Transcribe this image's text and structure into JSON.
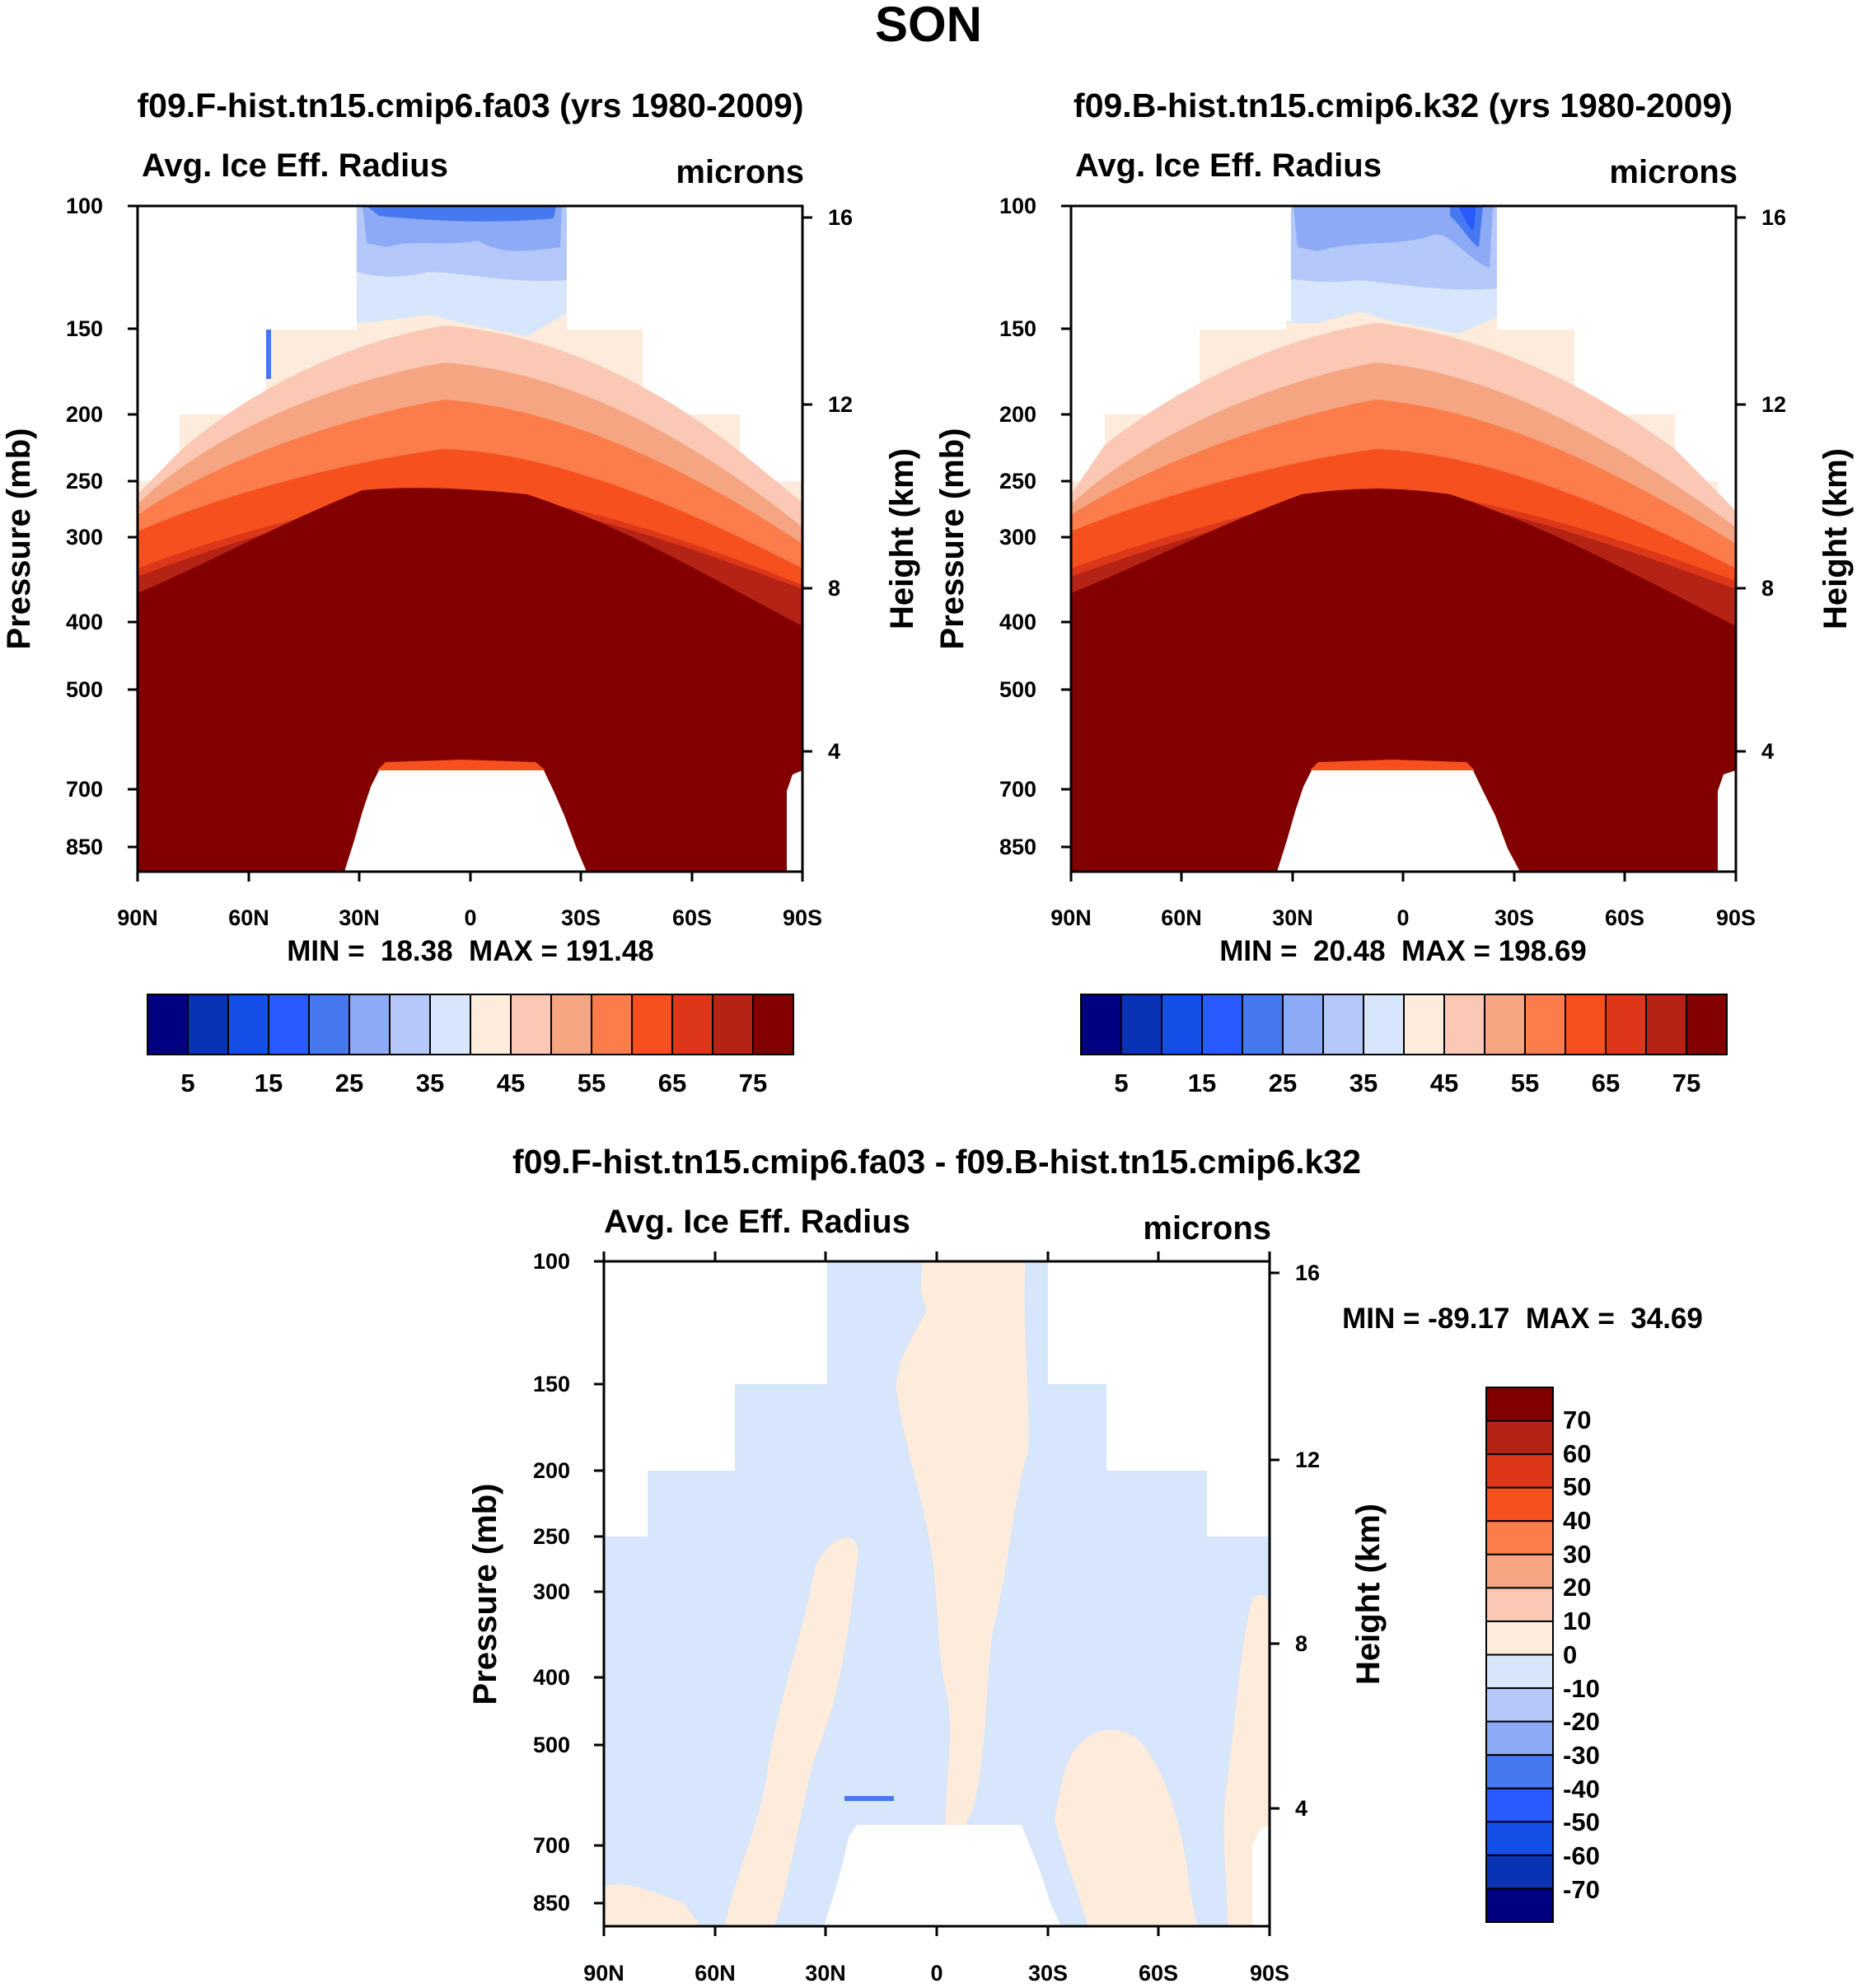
{
  "title": "SON",
  "chart_data": [
    {
      "type": "contour",
      "title": "f09.F-hist.tn15.cmip6.fa03 (yrs 1980-2009)",
      "left_string": "Avg. Ice Eff. Radius",
      "right_string": "microns",
      "ylabel": "Pressure (mb)",
      "ylabel_right": "Height (km)",
      "x_ticks": [
        "90N",
        "60N",
        "30N",
        "0",
        "30S",
        "60S",
        "90S"
      ],
      "y_ticks": [
        "100",
        "150",
        "200",
        "250",
        "300",
        "400",
        "500",
        "700",
        "850"
      ],
      "y_right_ticks": [
        "16",
        "12",
        "8",
        "4"
      ],
      "xlim": [
        90,
        -90
      ],
      "ylim": [
        1000,
        100
      ],
      "stats": "MIN =  18.38  MAX = 191.48",
      "min": 18.38,
      "max": 191.48
    },
    {
      "type": "contour",
      "title": "f09.B-hist.tn15.cmip6.k32 (yrs 1980-2009)",
      "left_string": "Avg. Ice Eff. Radius",
      "right_string": "microns",
      "ylabel": "Pressure (mb)",
      "ylabel_right": "Height (km)",
      "x_ticks": [
        "90N",
        "60N",
        "30N",
        "0",
        "30S",
        "60S",
        "90S"
      ],
      "y_ticks": [
        "100",
        "150",
        "200",
        "250",
        "300",
        "400",
        "500",
        "700",
        "850"
      ],
      "y_right_ticks": [
        "16",
        "12",
        "8",
        "4"
      ],
      "xlim": [
        90,
        -90
      ],
      "ylim": [
        1000,
        100
      ],
      "stats": "MIN =  20.48  MAX = 198.69",
      "min": 20.48,
      "max": 198.69
    },
    {
      "type": "contour",
      "title": "f09.F-hist.tn15.cmip6.fa03 - f09.B-hist.tn15.cmip6.k32",
      "left_string": "Avg. Ice Eff. Radius",
      "right_string": "microns",
      "ylabel": "Pressure (mb)",
      "ylabel_right": "Height (km)",
      "x_ticks": [
        "90N",
        "60N",
        "30N",
        "0",
        "30S",
        "60S",
        "90S"
      ],
      "y_ticks": [
        "100",
        "150",
        "200",
        "250",
        "300",
        "400",
        "500",
        "700",
        "850"
      ],
      "y_right_ticks": [
        "16",
        "12",
        "8",
        "4"
      ],
      "xlim": [
        90,
        -90
      ],
      "ylim": [
        1000,
        100
      ],
      "stats": "MIN = -89.17  MAX =  34.69",
      "min": -89.17,
      "max": 34.69
    }
  ],
  "colorbar_top": {
    "colors": [
      "#000080",
      "#0a32b4",
      "#1450e6",
      "#285aff",
      "#4678f0",
      "#8caaf5",
      "#b4c8fa",
      "#d7e6fa",
      "#fdebdc",
      "#fac8b4",
      "#f5a582",
      "#fa7d4b",
      "#f5501e",
      "#dc3719",
      "#b42314",
      "#820000"
    ],
    "labels": [
      "5",
      "15",
      "25",
      "35",
      "45",
      "55",
      "65",
      "75"
    ]
  },
  "colorbar_diff": {
    "colors": [
      "#820000",
      "#b42314",
      "#dc3719",
      "#f5501e",
      "#fa7d4b",
      "#f5a582",
      "#fac8b4",
      "#fdebdc",
      "#d7e6fa",
      "#b4c8fa",
      "#8caaf5",
      "#4678f0",
      "#285aff",
      "#1450e6",
      "#0a32b4",
      "#000080"
    ],
    "labels": [
      "70",
      "60",
      "50",
      "40",
      "30",
      "20",
      "10",
      "0",
      "-10",
      "-20",
      "-30",
      "-40",
      "-50",
      "-60",
      "-70"
    ]
  }
}
